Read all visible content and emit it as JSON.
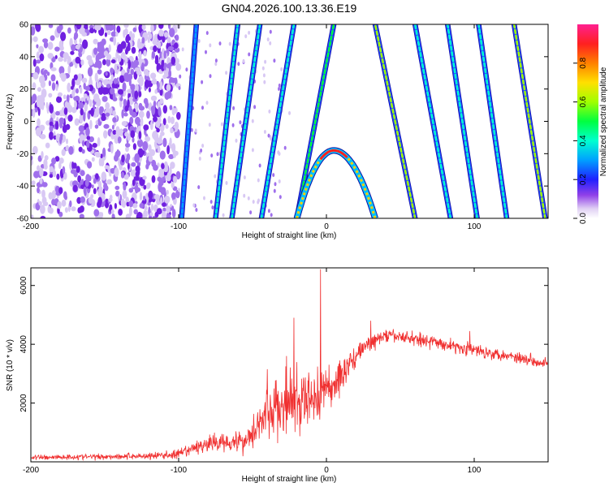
{
  "title": "GN04.2026.100.13.36.E19",
  "chart_data": [
    {
      "type": "heatmap",
      "xlabel": "Height of straight line (km)",
      "ylabel": "Frequency (Hz)",
      "xlim": [
        -200,
        150
      ],
      "ylim": [
        -60,
        60
      ],
      "x_ticks": [
        -200,
        -100,
        0,
        100
      ],
      "y_ticks": [
        -60,
        -40,
        -20,
        0,
        20,
        40,
        60
      ],
      "colorbar": {
        "label": "Normalized spectral amplitude",
        "range": [
          0.0,
          1.0
        ],
        "ticks": [
          "0.0",
          "0.2",
          "0.4",
          "0.6",
          "0.8"
        ],
        "colors": [
          "#ffffff",
          "#d8c8f0",
          "#8030e0",
          "#3030ff",
          "#00c0ff",
          "#00ff80",
          "#80ff00",
          "#ffd000",
          "#ff6000",
          "#ff2040"
        ]
      },
      "features": {
        "noise_region_x": [
          -200,
          -100
        ],
        "streaks_negative": [
          {
            "x_at_f_minus60": -98,
            "x_at_f_plus60": -88,
            "amplitude": 0.15
          },
          {
            "x_at_f_minus60": -75,
            "x_at_f_plus60": -60,
            "amplitude": 0.2
          },
          {
            "x_at_f_minus60": -64,
            "x_at_f_plus60": -45,
            "amplitude": 0.2
          },
          {
            "x_at_f_minus60": -44,
            "x_at_f_plus60": -22,
            "amplitude": 0.25
          },
          {
            "x_at_f_minus60": -20,
            "x_at_f_plus60": 5,
            "amplitude": 0.4
          }
        ],
        "streaks_positive": [
          {
            "x_at_f_minus60": 60,
            "x_at_f_plus60": 33,
            "amplitude": 0.45
          },
          {
            "x_at_f_minus60": 84,
            "x_at_f_plus60": 60,
            "amplitude": 0.3
          },
          {
            "x_at_f_minus60": 102,
            "x_at_f_plus60": 82,
            "amplitude": 0.3
          },
          {
            "x_at_f_minus60": 122,
            "x_at_f_plus60": 103,
            "amplitude": 0.3
          },
          {
            "x_at_f_minus60": 148,
            "x_at_f_plus60": 127,
            "amplitude": 0.45
          }
        ],
        "parabola": {
          "vertex_x": 5,
          "vertex_f": -18,
          "x_at_f_minus60": [
            -20,
            33
          ],
          "amplitude": 0.9
        }
      }
    },
    {
      "type": "line",
      "xlabel": "Height of straight line (km)",
      "ylabel": "SNR (10 * v/v)",
      "xlim": [
        -200,
        150
      ],
      "ylim": [
        0,
        6600
      ],
      "x_ticks": [
        -200,
        -100,
        0,
        100
      ],
      "y_ticks": [
        2000,
        4000,
        6000
      ],
      "series": [
        {
          "color": "#f03030",
          "envelope": [
            {
              "x": -200,
              "y": 150,
              "spread": 80
            },
            {
              "x": -150,
              "y": 180,
              "spread": 90
            },
            {
              "x": -120,
              "y": 200,
              "spread": 110
            },
            {
              "x": -100,
              "y": 250,
              "spread": 150
            },
            {
              "x": -85,
              "y": 550,
              "spread": 220
            },
            {
              "x": -70,
              "y": 700,
              "spread": 300
            },
            {
              "x": -55,
              "y": 700,
              "spread": 380
            },
            {
              "x": -45,
              "y": 1400,
              "spread": 650
            },
            {
              "x": -35,
              "y": 1800,
              "spread": 900
            },
            {
              "x": -25,
              "y": 1900,
              "spread": 1100
            },
            {
              "x": -15,
              "y": 2000,
              "spread": 1000
            },
            {
              "x": -5,
              "y": 2300,
              "spread": 900
            },
            {
              "x": 5,
              "y": 2600,
              "spread": 700
            },
            {
              "x": 15,
              "y": 3300,
              "spread": 400
            },
            {
              "x": 25,
              "y": 3900,
              "spread": 250
            },
            {
              "x": 40,
              "y": 4300,
              "spread": 200
            },
            {
              "x": 60,
              "y": 4200,
              "spread": 200
            },
            {
              "x": 80,
              "y": 4000,
              "spread": 200
            },
            {
              "x": 100,
              "y": 3800,
              "spread": 200
            },
            {
              "x": 125,
              "y": 3600,
              "spread": 180
            },
            {
              "x": 150,
              "y": 3350,
              "spread": 180
            }
          ],
          "peaks": [
            {
              "x": -4,
              "y": 6550
            },
            {
              "x": -22,
              "y": 4900
            },
            {
              "x": -27,
              "y": 3600
            },
            {
              "x": -40,
              "y": 3150
            },
            {
              "x": 30,
              "y": 4800
            },
            {
              "x": 97,
              "y": 4450
            }
          ]
        }
      ]
    }
  ]
}
